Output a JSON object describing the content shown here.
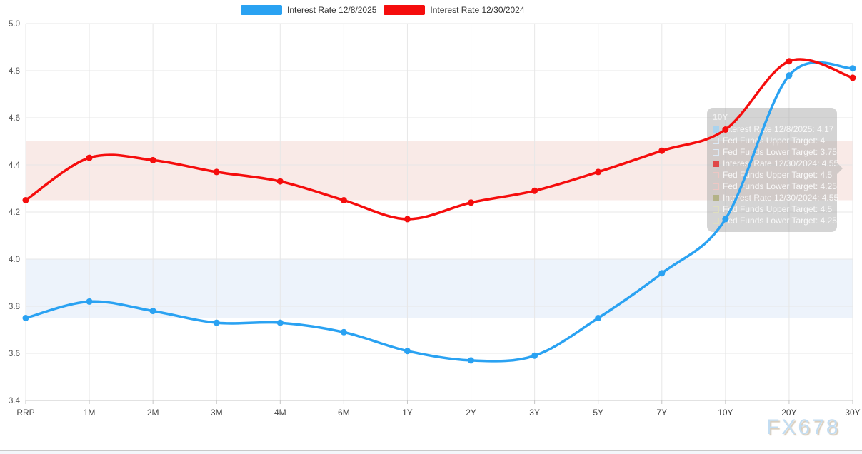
{
  "watermark": "FX678",
  "legend": {
    "items": [
      {
        "label": "Interest Rate 12/8/2025",
        "color": "#2aa2f2"
      },
      {
        "label": "Interest Rate 12/30/2024",
        "color": "#f50d0d"
      }
    ]
  },
  "tooltip": {
    "title": "10Y",
    "rows": [
      {
        "label": "Interest Rate 12/8/2025",
        "value": "4.17",
        "swatch": "blue-filled"
      },
      {
        "label": "Fed Funds Upper Target",
        "value": "4",
        "swatch": "blue-outline"
      },
      {
        "label": "Fed Funds Lower Target",
        "value": "3.75",
        "swatch": "blue-outline"
      },
      {
        "label": "Interest Rate 12/30/2024",
        "value": "4.55",
        "swatch": "red-filled"
      },
      {
        "label": "Fed Funds Upper Target",
        "value": "4.5",
        "swatch": "red-outline"
      },
      {
        "label": "Fed Funds Lower Target",
        "value": "4.25",
        "swatch": "red-outline"
      },
      {
        "label": "Interest Rate 12/30/2024",
        "value": "4.55",
        "swatch": "olive-filled"
      },
      {
        "label": "Fed Funds Upper Target",
        "value": "4.5",
        "swatch": "olive-outline"
      },
      {
        "label": "Fed Funds Lower Target",
        "value": "4.25",
        "swatch": "olive-outline"
      }
    ]
  },
  "chart_data": {
    "type": "line",
    "title": "",
    "xlabel": "",
    "ylabel": "",
    "categories": [
      "RRP",
      "1M",
      "2M",
      "3M",
      "4M",
      "6M",
      "1Y",
      "2Y",
      "3Y",
      "5Y",
      "7Y",
      "10Y",
      "20Y",
      "30Y"
    ],
    "series": [
      {
        "name": "Interest Rate 12/8/2025",
        "color": "#2aa2f2",
        "values": [
          3.75,
          3.82,
          3.78,
          3.73,
          3.73,
          3.69,
          3.61,
          3.57,
          3.59,
          3.75,
          3.94,
          4.17,
          4.78,
          4.81
        ]
      },
      {
        "name": "Interest Rate 12/30/2024",
        "color": "#f50d0d",
        "values": [
          4.25,
          4.43,
          4.42,
          4.37,
          4.33,
          4.25,
          4.17,
          4.24,
          4.29,
          4.37,
          4.46,
          4.55,
          4.84,
          4.77
        ]
      }
    ],
    "bands": [
      {
        "from": 4.25,
        "to": 4.5,
        "color": "#f9eae7"
      },
      {
        "from": 3.75,
        "to": 4.0,
        "color": "#edf3fb"
      }
    ],
    "ylim": [
      3.4,
      5.0
    ],
    "ytick_step": 0.2,
    "grid": true,
    "legend_position": "top-center",
    "grid_color": "#e7e7e7",
    "axis_color": "#c5c5c5",
    "xtick_label_color": "#444",
    "ytick_label_color": "#555"
  }
}
